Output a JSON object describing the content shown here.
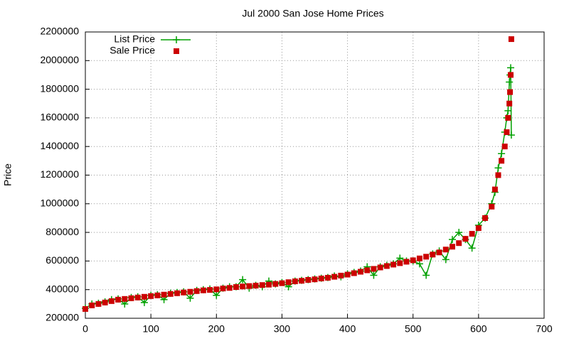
{
  "chart_data": {
    "type": "line-scatter",
    "title": "Jul 2000 San Jose Home Prices",
    "y_label": "Price",
    "x": [
      0,
      10,
      20,
      30,
      40,
      50,
      60,
      70,
      80,
      90,
      100,
      110,
      120,
      130,
      140,
      150,
      160,
      170,
      180,
      190,
      200,
      210,
      220,
      230,
      240,
      250,
      260,
      270,
      280,
      290,
      300,
      310,
      320,
      330,
      340,
      350,
      360,
      370,
      380,
      390,
      400,
      410,
      420,
      430,
      440,
      450,
      460,
      470,
      480,
      490,
      500,
      510,
      520,
      530,
      540,
      550,
      560,
      570,
      580,
      590,
      600,
      610,
      620,
      625,
      630,
      635,
      640,
      643,
      645,
      647,
      648,
      649,
      650
    ],
    "series": [
      {
        "name": "List Price",
        "color": "#00a000",
        "style": "linespoints",
        "values": [
          270000,
          300000,
          305000,
          315000,
          330000,
          335000,
          300000,
          345000,
          350000,
          310000,
          360000,
          365000,
          330000,
          375000,
          380000,
          385000,
          340000,
          395000,
          400000,
          405000,
          360000,
          410000,
          420000,
          420000,
          470000,
          410000,
          430000,
          420000,
          460000,
          440000,
          450000,
          420000,
          460000,
          465000,
          470000,
          475000,
          480000,
          485000,
          495000,
          490000,
          510000,
          520000,
          530000,
          560000,
          500000,
          560000,
          570000,
          580000,
          620000,
          600000,
          600000,
          580000,
          500000,
          650000,
          670000,
          610000,
          750000,
          800000,
          750000,
          690000,
          850000,
          900000,
          1000000,
          1080000,
          1250000,
          1350000,
          1500000,
          1600000,
          1650000,
          1850000,
          1900000,
          1950000,
          1480000
        ]
      },
      {
        "name": "Sale Price",
        "color": "#cc0000",
        "style": "points",
        "values": [
          265000,
          290000,
          300000,
          310000,
          320000,
          330000,
          335000,
          340000,
          345000,
          350000,
          355000,
          360000,
          365000,
          370000,
          375000,
          380000,
          385000,
          390000,
          395000,
          398000,
          402000,
          408000,
          412000,
          418000,
          422000,
          425000,
          428000,
          432000,
          435000,
          440000,
          445000,
          452000,
          458000,
          462000,
          468000,
          472000,
          478000,
          483000,
          490000,
          498000,
          505000,
          515000,
          525000,
          535000,
          545000,
          555000,
          565000,
          575000,
          585000,
          595000,
          605000,
          618000,
          630000,
          645000,
          660000,
          680000,
          700000,
          725000,
          755000,
          790000,
          830000,
          900000,
          980000,
          1100000,
          1200000,
          1300000,
          1400000,
          1500000,
          1600000,
          1700000,
          1780000,
          1900000,
          2150000
        ]
      }
    ],
    "xlim": [
      0,
      700
    ],
    "xticks": [
      0,
      100,
      200,
      300,
      400,
      500,
      600,
      700
    ],
    "ylim": [
      200000,
      2200000
    ],
    "yticks": [
      200000,
      400000,
      600000,
      800000,
      1000000,
      1200000,
      1400000,
      1600000,
      1800000,
      2000000,
      2200000
    ],
    "grid": true,
    "legend": "top-left"
  }
}
